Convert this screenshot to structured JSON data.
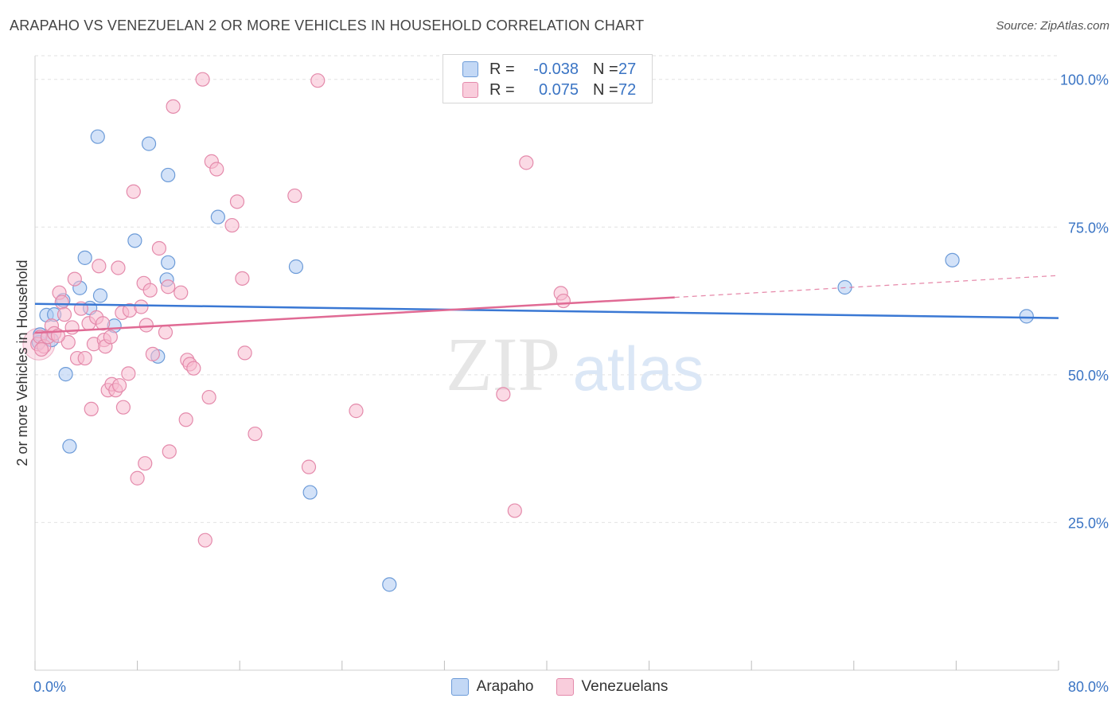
{
  "title": "ARAPAHO VS VENEZUELAN 2 OR MORE VEHICLES IN HOUSEHOLD CORRELATION CHART",
  "source": "Source: ZipAtlas.com",
  "watermark": {
    "zip": "ZIP",
    "atlas": "atlas"
  },
  "legend": {
    "rows": [
      {
        "r_label": "R =",
        "r_value": "-0.038",
        "n_label": "N =",
        "n_value": "27"
      },
      {
        "r_label": "R =",
        "r_value": "0.075",
        "n_label": "N =",
        "n_value": "72"
      }
    ]
  },
  "colors": {
    "arapaho_fill": "#aecbf2",
    "arapaho_stroke": "#6c9bd8",
    "arapaho_line": "#3a78d4",
    "venezuelan_fill": "#f7bcd0",
    "venezuelan_stroke": "#e48aab",
    "venezuelan_line": "#e06a94",
    "axis_label": "#3a74c4",
    "grid": "#e2e2e2"
  },
  "chart_data": {
    "type": "scatter",
    "ylabel": "2 or more Vehicles in Household",
    "xlim": [
      0,
      80
    ],
    "ylim": [
      0,
      104
    ],
    "x_ticks": [
      {
        "value": 0,
        "label": "0.0%"
      },
      {
        "value": 80,
        "label": "80.0%"
      }
    ],
    "y_ticks": [
      {
        "value": 25,
        "label": "25.0%"
      },
      {
        "value": 50,
        "label": "50.0%"
      },
      {
        "value": 75,
        "label": "75.0%"
      },
      {
        "value": 100,
        "label": "100.0%"
      }
    ],
    "grid": true,
    "series": [
      {
        "name": "Arapaho",
        "trend": {
          "x0": 0,
          "y0": 62.0,
          "x1": 80,
          "y1": 59.6
        },
        "points": [
          [
            0.3,
            55.5
          ],
          [
            0.9,
            60.1
          ],
          [
            1.3,
            55.9
          ],
          [
            1.5,
            60.2
          ],
          [
            2.2,
            62.6
          ],
          [
            2.4,
            50.1
          ],
          [
            2.7,
            37.9
          ],
          [
            3.5,
            64.7
          ],
          [
            3.9,
            69.8
          ],
          [
            4.3,
            61.3
          ],
          [
            5.1,
            63.4
          ],
          [
            4.9,
            90.3
          ],
          [
            6.2,
            58.3
          ],
          [
            7.8,
            72.7
          ],
          [
            8.9,
            89.1
          ],
          [
            9.6,
            53.1
          ],
          [
            10.3,
            66.1
          ],
          [
            10.4,
            69.0
          ],
          [
            10.4,
            83.8
          ],
          [
            14.3,
            76.7
          ],
          [
            20.4,
            68.3
          ],
          [
            21.5,
            30.1
          ],
          [
            27.7,
            14.5
          ],
          [
            63.3,
            64.8
          ],
          [
            71.7,
            69.4
          ],
          [
            77.5,
            59.9
          ],
          [
            0.4,
            56.8
          ]
        ]
      },
      {
        "name": "Venezuelans",
        "trend": {
          "x0": 0,
          "y0": 57.1,
          "x1": 50,
          "y1": 63.1,
          "dash_x1": 80,
          "dash_y1": 66.8
        },
        "points": [
          [
            0.2,
            55.2
          ],
          [
            0.4,
            56.4
          ],
          [
            0.7,
            54.8
          ],
          [
            1.0,
            56.4
          ],
          [
            1.3,
            58.3
          ],
          [
            1.5,
            57.0
          ],
          [
            1.9,
            63.9
          ],
          [
            2.1,
            62.3
          ],
          [
            2.3,
            60.2
          ],
          [
            2.6,
            55.5
          ],
          [
            2.9,
            58.0
          ],
          [
            3.1,
            66.2
          ],
          [
            3.3,
            52.8
          ],
          [
            3.6,
            61.2
          ],
          [
            3.9,
            52.8
          ],
          [
            4.2,
            58.7
          ],
          [
            4.4,
            44.2
          ],
          [
            4.6,
            55.2
          ],
          [
            4.8,
            59.7
          ],
          [
            5.0,
            68.4
          ],
          [
            5.3,
            58.7
          ],
          [
            5.4,
            55.9
          ],
          [
            5.5,
            54.8
          ],
          [
            5.7,
            47.4
          ],
          [
            5.9,
            56.4
          ],
          [
            6.0,
            48.4
          ],
          [
            6.3,
            47.4
          ],
          [
            6.5,
            68.1
          ],
          [
            6.6,
            48.2
          ],
          [
            6.8,
            60.5
          ],
          [
            6.9,
            44.5
          ],
          [
            7.3,
            50.2
          ],
          [
            7.4,
            60.9
          ],
          [
            7.7,
            81.0
          ],
          [
            8.0,
            32.5
          ],
          [
            8.3,
            61.5
          ],
          [
            8.5,
            65.5
          ],
          [
            8.6,
            35.0
          ],
          [
            8.7,
            58.4
          ],
          [
            9.0,
            64.3
          ],
          [
            9.2,
            53.5
          ],
          [
            9.7,
            71.4
          ],
          [
            10.4,
            64.9
          ],
          [
            10.5,
            37.0
          ],
          [
            10.8,
            95.4
          ],
          [
            11.4,
            63.9
          ],
          [
            11.8,
            42.4
          ],
          [
            11.9,
            52.5
          ],
          [
            12.1,
            51.8
          ],
          [
            12.4,
            51.1
          ],
          [
            13.1,
            100.0
          ],
          [
            13.3,
            22.0
          ],
          [
            13.6,
            46.2
          ],
          [
            13.8,
            86.1
          ],
          [
            14.2,
            84.8
          ],
          [
            15.4,
            75.3
          ],
          [
            15.8,
            79.3
          ],
          [
            16.2,
            66.3
          ],
          [
            16.4,
            53.7
          ],
          [
            17.2,
            40.0
          ],
          [
            20.3,
            80.3
          ],
          [
            21.4,
            34.4
          ],
          [
            22.1,
            99.8
          ],
          [
            25.1,
            43.9
          ],
          [
            36.6,
            46.7
          ],
          [
            37.5,
            27.0
          ],
          [
            38.4,
            85.9
          ],
          [
            41.1,
            63.8
          ],
          [
            41.3,
            62.5
          ],
          [
            0.5,
            54.3
          ],
          [
            1.8,
            56.6
          ],
          [
            10.2,
            57.2
          ]
        ]
      }
    ]
  }
}
